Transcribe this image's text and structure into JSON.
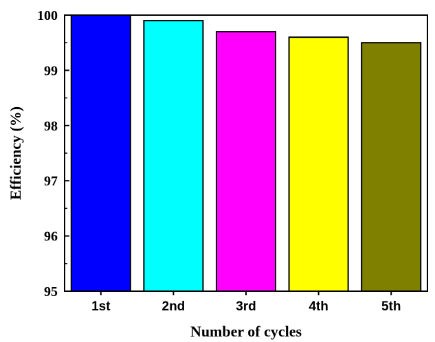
{
  "chart_data": {
    "type": "bar",
    "categories": [
      "1st",
      "2nd",
      "3rd",
      "4th",
      "5th"
    ],
    "values": [
      100.0,
      99.9,
      99.7,
      99.6,
      99.5
    ],
    "colors": [
      "#0000ff",
      "#00ffff",
      "#ff00ff",
      "#ffff00",
      "#808000"
    ],
    "xlabel": "Number of cycles",
    "ylabel": "Efficiency (%)",
    "ylim": [
      95,
      100
    ],
    "yticks": [
      "95",
      "96",
      "97",
      "98",
      "99",
      "100"
    ],
    "grid": false,
    "legend": "none"
  }
}
